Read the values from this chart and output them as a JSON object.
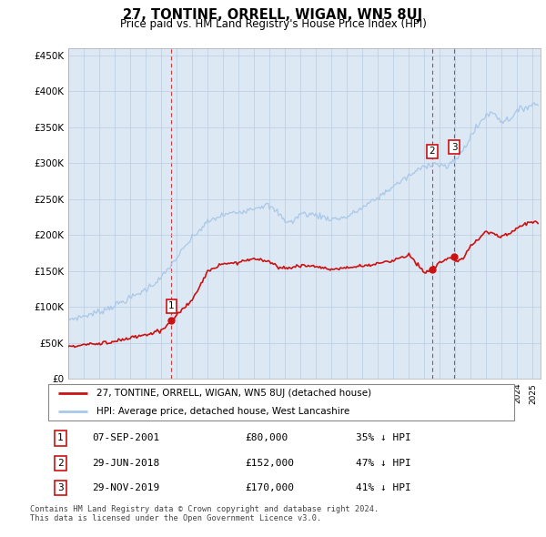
{
  "title": "27, TONTINE, ORRELL, WIGAN, WN5 8UJ",
  "subtitle": "Price paid vs. HM Land Registry's House Price Index (HPI)",
  "hpi_label": "HPI: Average price, detached house, West Lancashire",
  "property_label": "27, TONTINE, ORRELL, WIGAN, WN5 8UJ (detached house)",
  "hpi_color": "#a8c8e8",
  "property_color": "#cc1111",
  "ylim": [
    0,
    460000
  ],
  "yticks": [
    0,
    50000,
    100000,
    150000,
    200000,
    250000,
    300000,
    350000,
    400000,
    450000
  ],
  "ytick_labels": [
    "£0",
    "£50K",
    "£100K",
    "£150K",
    "£200K",
    "£250K",
    "£300K",
    "£350K",
    "£400K",
    "£450K"
  ],
  "xlim_start": 1995.0,
  "xlim_end": 2025.5,
  "chart_bg": "#dde8f5",
  "transactions": [
    {
      "num": 1,
      "date": "07-SEP-2001",
      "price": 80000,
      "price_str": "£80,000",
      "pct": "35%",
      "dir": "↓",
      "x": 2001.67,
      "on_hpi": false
    },
    {
      "num": 2,
      "date": "29-JUN-2018",
      "price": 152000,
      "price_str": "£152,000",
      "pct": "47%",
      "dir": "↓",
      "x": 2018.5,
      "on_hpi": true
    },
    {
      "num": 3,
      "date": "29-NOV-2019",
      "price": 170000,
      "price_str": "£170,000",
      "pct": "41%",
      "dir": "↓",
      "x": 2019.92,
      "on_hpi": true
    }
  ],
  "footer": "Contains HM Land Registry data © Crown copyright and database right 2024.\nThis data is licensed under the Open Government Licence v3.0.",
  "background_color": "#ffffff",
  "grid_color": "#b8cce0"
}
